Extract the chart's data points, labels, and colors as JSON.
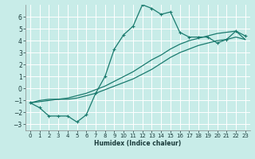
{
  "xlabel": "Humidex (Indice chaleur)",
  "bg_color": "#c8ece8",
  "grid_color": "#ffffff",
  "line_color": "#1a7a6e",
  "xlim": [
    -0.5,
    23.5
  ],
  "ylim": [
    -3.5,
    7.0
  ],
  "yticks": [
    -3,
    -2,
    -1,
    0,
    1,
    2,
    3,
    4,
    5,
    6
  ],
  "xticks": [
    0,
    1,
    2,
    3,
    4,
    5,
    6,
    7,
    8,
    9,
    10,
    11,
    12,
    13,
    14,
    15,
    16,
    17,
    18,
    19,
    20,
    21,
    22,
    23
  ],
  "line1_x": [
    0,
    1,
    2,
    3,
    4,
    5,
    6,
    7,
    8,
    9,
    10,
    11,
    12,
    13,
    14,
    15,
    16,
    17,
    18,
    19,
    20,
    21,
    22,
    23
  ],
  "line1_y": [
    -1.2,
    -1.6,
    -2.3,
    -2.3,
    -2.3,
    -2.8,
    -2.2,
    -0.4,
    1.0,
    3.3,
    4.5,
    5.2,
    7.0,
    6.7,
    6.2,
    6.4,
    4.7,
    4.3,
    4.3,
    4.3,
    3.8,
    4.1,
    4.8,
    4.4
  ],
  "line2_x": [
    0,
    1,
    2,
    3,
    4,
    5,
    6,
    7,
    8,
    9,
    10,
    11,
    12,
    13,
    14,
    15,
    16,
    17,
    18,
    19,
    20,
    21,
    22,
    23
  ],
  "line2_y": [
    -1.2,
    -1.1,
    -1.0,
    -0.9,
    -0.9,
    -0.8,
    -0.6,
    -0.4,
    -0.1,
    0.2,
    0.5,
    0.8,
    1.2,
    1.6,
    2.1,
    2.6,
    3.0,
    3.3,
    3.6,
    3.8,
    4.0,
    4.1,
    4.3,
    4.1
  ],
  "line3_x": [
    0,
    1,
    2,
    3,
    4,
    5,
    6,
    7,
    8,
    9,
    10,
    11,
    12,
    13,
    14,
    15,
    16,
    17,
    18,
    19,
    20,
    21,
    22,
    23
  ],
  "line3_y": [
    -1.2,
    -1.0,
    -0.9,
    -0.9,
    -0.8,
    -0.6,
    -0.4,
    -0.1,
    0.2,
    0.6,
    1.0,
    1.4,
    1.9,
    2.4,
    2.8,
    3.3,
    3.7,
    4.0,
    4.2,
    4.4,
    4.6,
    4.7,
    4.8,
    4.1
  ]
}
